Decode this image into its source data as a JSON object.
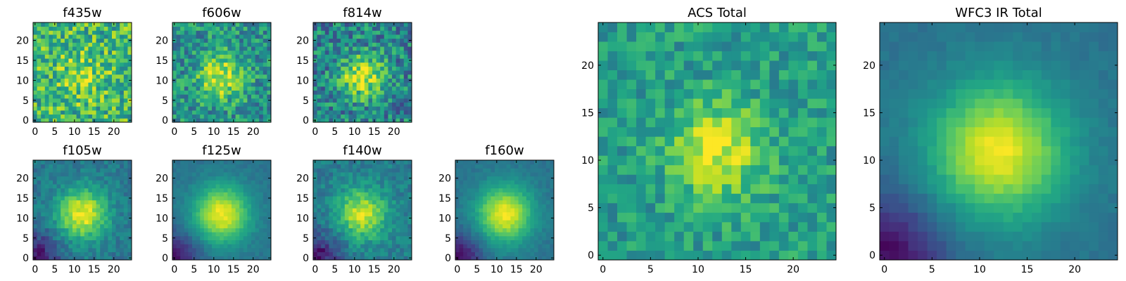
{
  "colormap": "viridis",
  "color_range": {
    "low": "#440154",
    "mid": "#21908d",
    "high": "#fde725"
  },
  "chart_data": [
    {
      "type": "heatmap",
      "title": "f435w",
      "grid_size": 25,
      "xlim": [
        0,
        25
      ],
      "ylim": [
        0,
        25
      ],
      "xticks": [
        "0",
        "5",
        "10",
        "15",
        "20"
      ],
      "yticks": [
        "0",
        "5",
        "10",
        "15",
        "20"
      ],
      "peak_center": [
        12,
        11
      ],
      "peak_sigma": 4.5,
      "peak_amplitude": 0.15,
      "background_level": 0.66,
      "noise_level": 0.26
    },
    {
      "type": "heatmap",
      "title": "f606w",
      "grid_size": 25,
      "xlim": [
        0,
        25
      ],
      "ylim": [
        0,
        25
      ],
      "xticks": [
        "0",
        "5",
        "10",
        "15",
        "20"
      ],
      "yticks": [
        "0",
        "5",
        "10",
        "15",
        "20"
      ],
      "peak_center": [
        12,
        11
      ],
      "peak_sigma": 4.0,
      "peak_amplitude": 0.45,
      "background_level": 0.5,
      "noise_level": 0.22
    },
    {
      "type": "heatmap",
      "title": "f814w",
      "grid_size": 25,
      "xlim": [
        0,
        25
      ],
      "ylim": [
        0,
        25
      ],
      "xticks": [
        "0",
        "5",
        "10",
        "15",
        "20"
      ],
      "yticks": [
        "0",
        "5",
        "10",
        "15",
        "20"
      ],
      "peak_center": [
        12,
        11
      ],
      "peak_sigma": 3.8,
      "peak_amplitude": 0.5,
      "background_level": 0.45,
      "noise_level": 0.24
    },
    {
      "type": "heatmap",
      "title": "f105w",
      "grid_size": 25,
      "xlim": [
        0,
        25
      ],
      "ylim": [
        0,
        25
      ],
      "xticks": [
        "0",
        "5",
        "10",
        "15",
        "20"
      ],
      "yticks": [
        "0",
        "5",
        "10",
        "15",
        "20"
      ],
      "peak_center": [
        12,
        11
      ],
      "peak_sigma": 4.5,
      "peak_amplitude": 0.58,
      "background_level": 0.4,
      "noise_level": 0.09,
      "corner_dip": 0.35
    },
    {
      "type": "heatmap",
      "title": "f125w",
      "grid_size": 25,
      "xlim": [
        0,
        25
      ],
      "ylim": [
        0,
        25
      ],
      "xticks": [
        "0",
        "5",
        "10",
        "15",
        "20"
      ],
      "yticks": [
        "0",
        "5",
        "10",
        "15",
        "20"
      ],
      "peak_center": [
        12,
        11
      ],
      "peak_sigma": 5.0,
      "peak_amplitude": 0.6,
      "background_level": 0.38,
      "noise_level": 0.04,
      "corner_dip": 0.32
    },
    {
      "type": "heatmap",
      "title": "f140w",
      "grid_size": 25,
      "xlim": [
        0,
        25
      ],
      "ylim": [
        0,
        25
      ],
      "xticks": [
        "0",
        "5",
        "10",
        "15",
        "20"
      ],
      "yticks": [
        "0",
        "5",
        "10",
        "15",
        "20"
      ],
      "peak_center": [
        12,
        11
      ],
      "peak_sigma": 4.5,
      "peak_amplitude": 0.5,
      "background_level": 0.42,
      "noise_level": 0.1,
      "corner_dip": 0.38
    },
    {
      "type": "heatmap",
      "title": "f160w",
      "grid_size": 25,
      "xlim": [
        0,
        25
      ],
      "ylim": [
        0,
        25
      ],
      "xticks": [
        "0",
        "5",
        "10",
        "15",
        "20"
      ],
      "yticks": [
        "0",
        "5",
        "10",
        "15",
        "20"
      ],
      "peak_center": [
        12,
        11
      ],
      "peak_sigma": 5.0,
      "peak_amplitude": 0.6,
      "background_level": 0.38,
      "noise_level": 0.04,
      "corner_dip": 0.35
    },
    {
      "type": "heatmap",
      "title": "ACS Total",
      "grid_size": 25,
      "xlim": [
        0,
        25
      ],
      "ylim": [
        0,
        25
      ],
      "xticks": [
        "0",
        "5",
        "10",
        "15",
        "20"
      ],
      "yticks": [
        "0",
        "5",
        "10",
        "15",
        "20"
      ],
      "peak_center": [
        12,
        11
      ],
      "peak_sigma": 3.5,
      "peak_amplitude": 0.42,
      "background_level": 0.55,
      "noise_level": 0.15
    },
    {
      "type": "heatmap",
      "title": "WFC3 IR Total",
      "grid_size": 25,
      "xlim": [
        0,
        25
      ],
      "ylim": [
        0,
        25
      ],
      "xticks": [
        "0",
        "5",
        "10",
        "15",
        "20"
      ],
      "yticks": [
        "0",
        "5",
        "10",
        "15",
        "20"
      ],
      "peak_center": [
        12,
        11
      ],
      "peak_sigma": 5.0,
      "peak_amplitude": 0.6,
      "background_level": 0.38,
      "noise_level": 0.03,
      "corner_dip": 0.35
    }
  ]
}
